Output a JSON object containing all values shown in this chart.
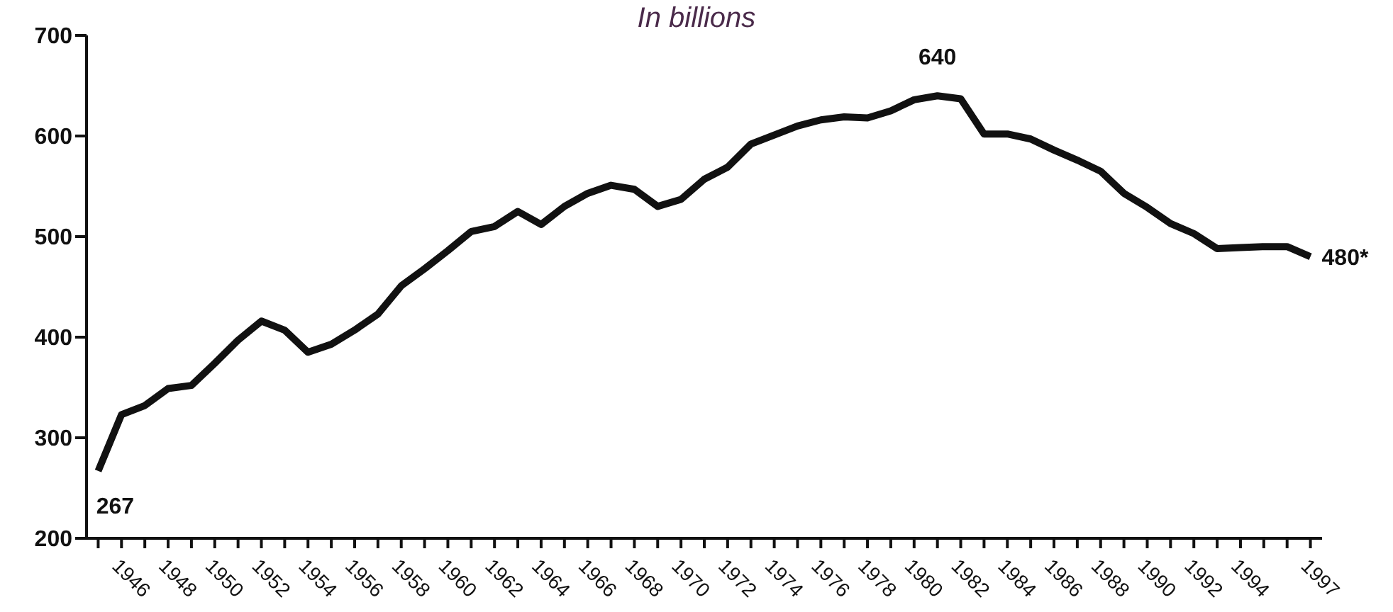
{
  "chart_data": {
    "type": "line",
    "title": "In billions",
    "x": [
      1945,
      1946,
      1947,
      1948,
      1949,
      1950,
      1951,
      1952,
      1953,
      1954,
      1955,
      1956,
      1957,
      1958,
      1959,
      1960,
      1961,
      1962,
      1963,
      1964,
      1965,
      1966,
      1967,
      1968,
      1969,
      1970,
      1971,
      1972,
      1973,
      1974,
      1975,
      1976,
      1977,
      1978,
      1979,
      1980,
      1981,
      1982,
      1983,
      1984,
      1985,
      1986,
      1987,
      1988,
      1989,
      1990,
      1991,
      1992,
      1993,
      1994,
      1995,
      1996,
      1997
    ],
    "series": [
      {
        "color": "#111111",
        "values": [
          267,
          323,
          332,
          349,
          352,
          374,
          397,
          416,
          407,
          385,
          393,
          407,
          423,
          451,
          468,
          486,
          505,
          510,
          525,
          512,
          530,
          543,
          551,
          547,
          530,
          537,
          557,
          569,
          592,
          601,
          610,
          616,
          619,
          618,
          625,
          636,
          640,
          637,
          602,
          602,
          597,
          586,
          576,
          565,
          543,
          529,
          513,
          503,
          488,
          489,
          490,
          490,
          480
        ]
      }
    ],
    "xlim": [
      1944.5,
      1997.5
    ],
    "xticks": [
      {
        "value": 1945,
        "label": null
      },
      1946,
      {
        "value": 1947,
        "label": null
      },
      1948,
      {
        "value": 1949,
        "label": null
      },
      1950,
      {
        "value": 1951,
        "label": null
      },
      1952,
      {
        "value": 1953,
        "label": null
      },
      1954,
      {
        "value": 1955,
        "label": null
      },
      1956,
      {
        "value": 1957,
        "label": null
      },
      1958,
      {
        "value": 1959,
        "label": null
      },
      1960,
      {
        "value": 1961,
        "label": null
      },
      1962,
      {
        "value": 1963,
        "label": null
      },
      1964,
      {
        "value": 1965,
        "label": null
      },
      1966,
      {
        "value": 1967,
        "label": null
      },
      1968,
      {
        "value": 1969,
        "label": null
      },
      1970,
      {
        "value": 1971,
        "label": null
      },
      1972,
      {
        "value": 1973,
        "label": null
      },
      1974,
      {
        "value": 1975,
        "label": null
      },
      1976,
      {
        "value": 1977,
        "label": null
      },
      1978,
      {
        "value": 1979,
        "label": null
      },
      1980,
      {
        "value": 1981,
        "label": null
      },
      1982,
      {
        "value": 1983,
        "label": null
      },
      1984,
      {
        "value": 1985,
        "label": null
      },
      1986,
      {
        "value": 1987,
        "label": null
      },
      1988,
      {
        "value": 1989,
        "label": null
      },
      1990,
      {
        "value": 1991,
        "label": null
      },
      1992,
      {
        "value": 1993,
        "label": null
      },
      1994,
      {
        "value": 1995,
        "label": null
      },
      {
        "value": 1996,
        "label": null
      },
      1997
    ],
    "ylim": [
      200,
      700
    ],
    "yticks": [
      200,
      300,
      400,
      500,
      600,
      700
    ],
    "grid": false,
    "legend": false,
    "marker": "none",
    "line_style": "solid",
    "annotations": [
      {
        "text": "267",
        "x": 1945,
        "y": 267
      },
      {
        "text": "640",
        "x": 1981,
        "y": 640
      },
      {
        "text": "480*",
        "x": 1997,
        "y": 480
      }
    ]
  }
}
